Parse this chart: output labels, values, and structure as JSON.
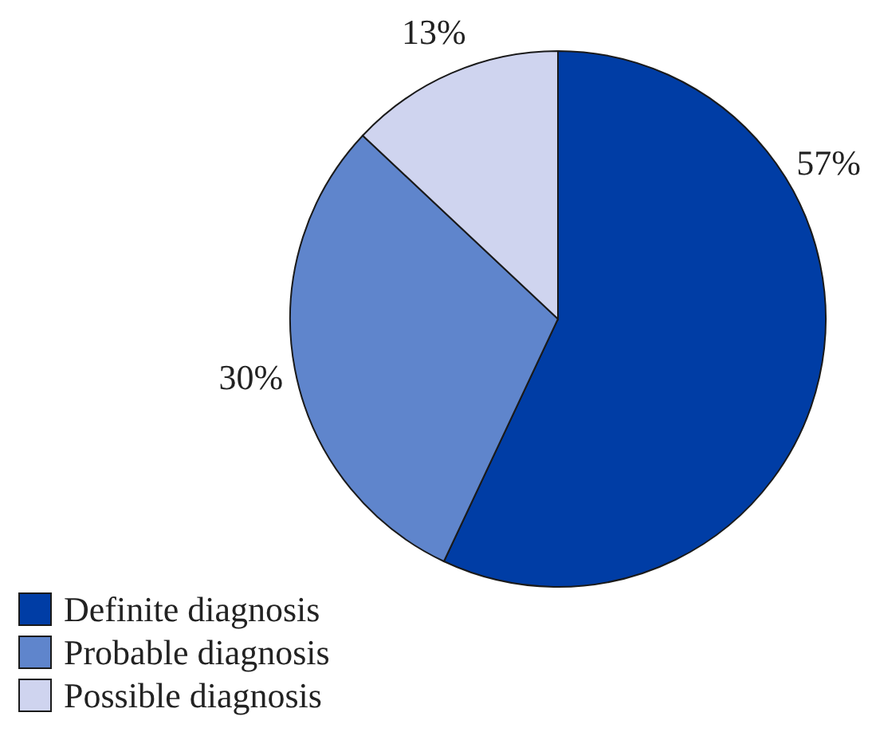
{
  "chart_data": {
    "type": "pie",
    "categories": [
      "Definite diagnosis",
      "Probable diagnosis",
      "Possible diagnosis"
    ],
    "values": [
      57,
      30,
      13
    ],
    "colors": [
      "#003da5",
      "#5f85cc",
      "#cfd4ef"
    ],
    "value_labels": [
      "57%",
      "30%",
      "13%"
    ],
    "legend": "bottom left"
  }
}
